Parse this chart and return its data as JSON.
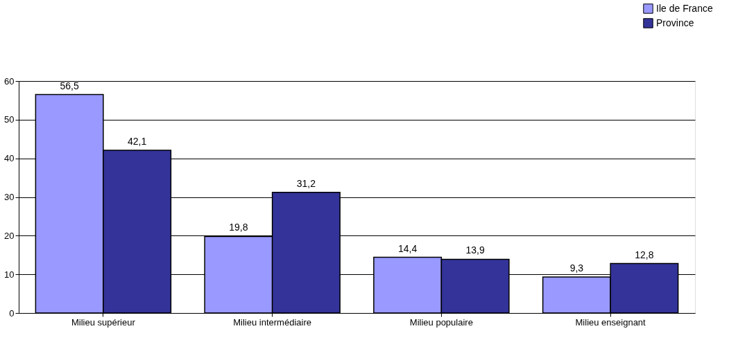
{
  "chart_data": {
    "type": "bar",
    "categories": [
      "Milieu supérieur",
      "Milieu intermédiaire",
      "Milieu populaire",
      "Milieu enseignant"
    ],
    "series": [
      {
        "name": "Ile de France",
        "color": "#9999ff",
        "values": [
          56.5,
          19.8,
          14.4,
          9.3
        ],
        "value_labels": [
          "56,5",
          "19,8",
          "14,4",
          "9,3"
        ]
      },
      {
        "name": "Province",
        "color": "#333399",
        "values": [
          42.1,
          31.2,
          13.9,
          12.8
        ],
        "value_labels": [
          "42,1",
          "31,2",
          "13,9",
          "12,8"
        ]
      }
    ],
    "ylim": [
      0,
      60
    ],
    "yticks": [
      0,
      10,
      20,
      30,
      40,
      50,
      60
    ],
    "grid": "y",
    "legend": "top right"
  }
}
